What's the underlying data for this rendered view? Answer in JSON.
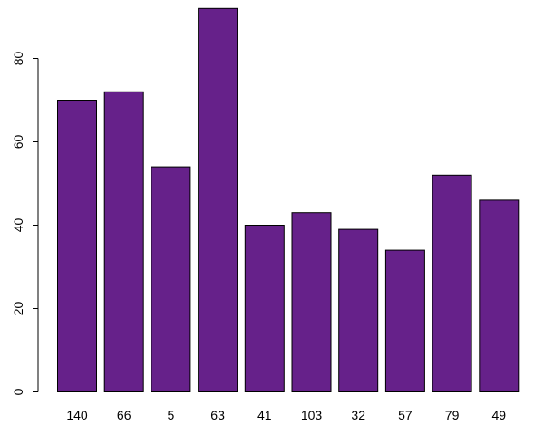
{
  "chart_data": {
    "type": "bar",
    "categories": [
      "140",
      "66",
      "5",
      "63",
      "41",
      "103",
      "32",
      "57",
      "79",
      "49"
    ],
    "values": [
      70,
      72,
      54,
      92,
      40,
      43,
      39,
      34,
      52,
      46
    ],
    "ylim": [
      0,
      92
    ],
    "yticks": [
      "0",
      "20",
      "40",
      "60",
      "80"
    ],
    "grid": false,
    "legend": "none"
  },
  "colors": {
    "bar_fill": "#66218a",
    "bar_stroke": "#000000",
    "axis": "#000000",
    "background": "#ffffff"
  }
}
